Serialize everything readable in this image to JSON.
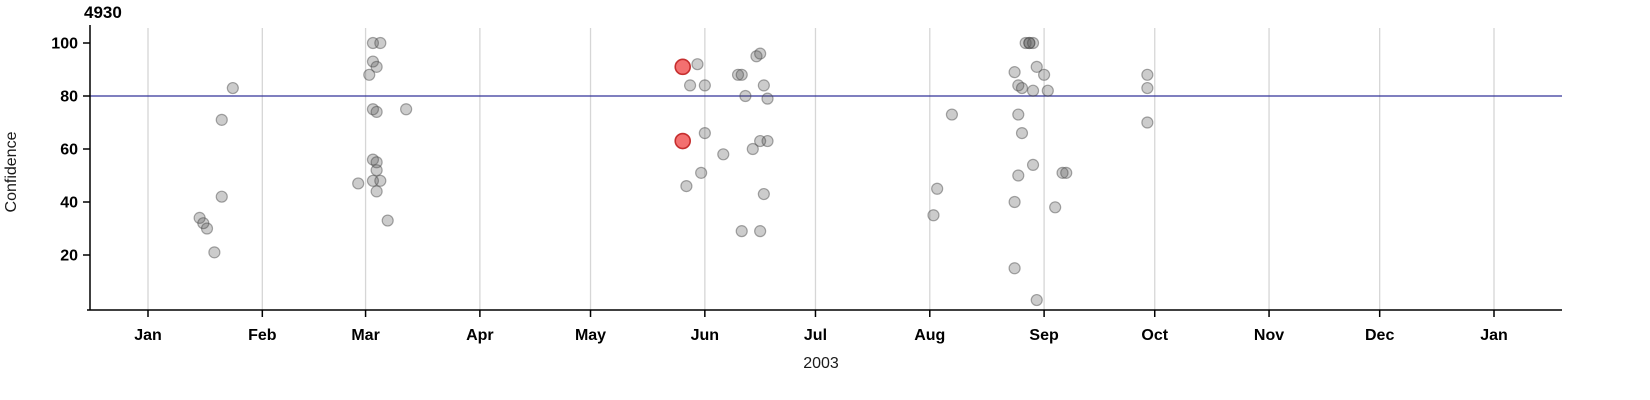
{
  "chart_data": {
    "type": "scatter",
    "title": "4930",
    "xlabel": "2003",
    "ylabel": "Confidence",
    "x_axis": {
      "tick_labels": [
        "Jan",
        "Feb",
        "Mar",
        "Apr",
        "May",
        "Jun",
        "Jul",
        "Aug",
        "Sep",
        "Oct",
        "Nov",
        "Dec",
        "Jan"
      ],
      "tick_days": [
        0,
        31,
        59,
        90,
        120,
        151,
        181,
        212,
        243,
        273,
        304,
        334,
        365
      ],
      "domain_days": [
        0,
        365
      ]
    },
    "y_axis": {
      "ticks": [
        20,
        40,
        60,
        80,
        100
      ],
      "range": [
        0,
        105
      ]
    },
    "grid": "vertical-only",
    "legend": "none",
    "reference_line": {
      "y": 80,
      "color": "#333399"
    },
    "colors": {
      "grid": "#d6d6d6",
      "axis": "#000000",
      "point_fill": "#555555",
      "point_stroke": "#444444",
      "highlight_fill": "#ef4040",
      "highlight_stroke": "#c02020"
    },
    "points": [
      [
        14,
        34
      ],
      [
        15,
        32
      ],
      [
        16,
        30
      ],
      [
        18,
        21
      ],
      [
        20,
        71
      ],
      [
        20,
        42
      ],
      [
        23,
        83
      ],
      [
        57,
        47
      ],
      [
        60,
        88
      ],
      [
        61,
        100
      ],
      [
        63,
        100
      ],
      [
        61,
        93
      ],
      [
        62,
        91
      ],
      [
        61,
        75
      ],
      [
        62,
        74
      ],
      [
        70,
        75
      ],
      [
        61,
        56
      ],
      [
        62,
        55
      ],
      [
        62,
        52
      ],
      [
        61,
        48
      ],
      [
        63,
        48
      ],
      [
        62,
        44
      ],
      [
        65,
        33
      ],
      [
        149,
        92
      ],
      [
        147,
        84
      ],
      [
        151,
        84
      ],
      [
        151,
        66
      ],
      [
        150,
        51
      ],
      [
        146,
        46
      ],
      [
        156,
        58
      ],
      [
        160,
        88
      ],
      [
        161,
        88
      ],
      [
        162,
        80
      ],
      [
        165,
        95
      ],
      [
        166,
        96
      ],
      [
        167,
        84
      ],
      [
        168,
        79
      ],
      [
        164,
        60
      ],
      [
        166,
        63
      ],
      [
        168,
        63
      ],
      [
        161,
        29
      ],
      [
        166,
        29
      ],
      [
        167,
        43
      ],
      [
        218,
        73
      ],
      [
        214,
        45
      ],
      [
        213,
        35
      ],
      [
        235,
        89
      ],
      [
        236,
        84
      ],
      [
        237,
        83
      ],
      [
        236,
        73
      ],
      [
        237,
        66
      ],
      [
        236,
        50
      ],
      [
        235,
        40
      ],
      [
        235,
        15
      ],
      [
        238,
        100
      ],
      [
        239,
        100
      ],
      [
        239,
        100
      ],
      [
        240,
        100
      ],
      [
        241,
        91
      ],
      [
        243,
        88
      ],
      [
        240,
        82
      ],
      [
        244,
        82
      ],
      [
        240,
        54
      ],
      [
        248,
        51
      ],
      [
        249,
        51
      ],
      [
        246,
        38
      ],
      [
        241,
        3
      ],
      [
        271,
        88
      ],
      [
        271,
        83
      ],
      [
        271,
        70
      ]
    ],
    "highlight_points": [
      [
        145,
        91
      ],
      [
        145,
        63
      ]
    ]
  }
}
